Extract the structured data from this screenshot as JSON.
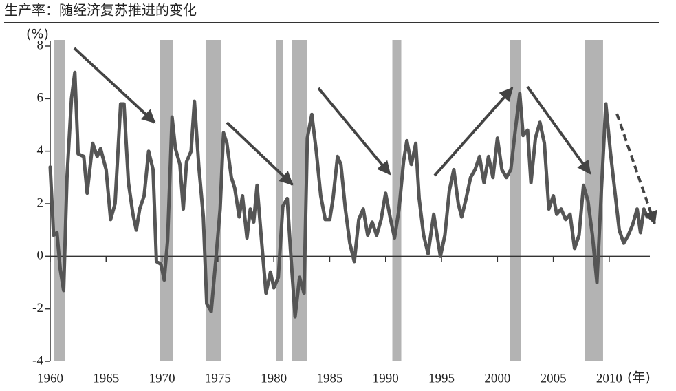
{
  "chart_data": {
    "type": "line",
    "title": "生产率：随经济复苏推进的变化",
    "y_label": "(%)",
    "x_label": "(年)",
    "xlim": [
      1960,
      2014.25
    ],
    "ylim": [
      -4,
      8
    ],
    "xticks": [
      1960,
      1965,
      1970,
      1975,
      1980,
      1985,
      1990,
      1995,
      2000,
      2005,
      2010
    ],
    "yticks": [
      -4,
      -2,
      0,
      2,
      4,
      6,
      8
    ],
    "shade_color": "#b3b3b3",
    "shaded_periods": [
      [
        1960.37,
        1961.3
      ],
      [
        1969.8,
        1971.0
      ],
      [
        1973.9,
        1975.3
      ],
      [
        1980.2,
        1980.8
      ],
      [
        1981.6,
        1983.0
      ],
      [
        1990.6,
        1991.4
      ],
      [
        2001.1,
        2002.1
      ],
      [
        2007.85,
        2009.45
      ]
    ],
    "series": [
      {
        "color": "#555555",
        "x": [
          1960.0,
          1960.3,
          1960.6,
          1960.9,
          1961.2,
          1961.5,
          1961.9,
          1962.2,
          1962.5,
          1963.0,
          1963.3,
          1963.8,
          1964.2,
          1964.5,
          1965.0,
          1965.4,
          1965.8,
          1966.3,
          1966.6,
          1967.0,
          1967.4,
          1967.7,
          1968.0,
          1968.4,
          1968.8,
          1969.2,
          1969.5,
          1969.9,
          1970.2,
          1970.5,
          1970.9,
          1971.2,
          1971.6,
          1971.9,
          1972.2,
          1972.6,
          1972.9,
          1973.3,
          1973.7,
          1974.0,
          1974.4,
          1974.8,
          1975.2,
          1975.5,
          1975.8,
          1976.2,
          1976.5,
          1976.9,
          1977.2,
          1977.6,
          1977.9,
          1978.2,
          1978.5,
          1978.9,
          1979.3,
          1979.7,
          1980.0,
          1980.4,
          1980.8,
          1981.2,
          1981.5,
          1981.9,
          1982.3,
          1982.7,
          1983.0,
          1983.4,
          1983.8,
          1984.2,
          1984.6,
          1985.0,
          1985.3,
          1985.7,
          1986.0,
          1986.4,
          1986.8,
          1987.2,
          1987.6,
          1988.0,
          1988.4,
          1988.8,
          1989.2,
          1989.6,
          1990.0,
          1990.4,
          1990.8,
          1991.2,
          1991.6,
          1991.9,
          1992.3,
          1992.7,
          1993.0,
          1993.4,
          1993.8,
          1994.3,
          1994.6,
          1994.9,
          1995.3,
          1995.7,
          1996.1,
          1996.5,
          1996.8,
          1997.2,
          1997.6,
          1998.0,
          1998.4,
          1998.8,
          1999.2,
          1999.6,
          2000.0,
          2000.4,
          2000.8,
          2001.2,
          2001.6,
          2002.0,
          2002.3,
          2002.7,
          2003.0,
          2003.4,
          2003.8,
          2004.2,
          2004.6,
          2005.0,
          2005.3,
          2005.7,
          2006.1,
          2006.5,
          2006.9,
          2007.3,
          2007.7,
          2008.1,
          2008.5,
          2008.9,
          2009.3,
          2009.7,
          2010.1,
          2010.5,
          2010.9,
          2011.3,
          2011.7,
          2012.1,
          2012.5,
          2012.8,
          2013.1,
          2013.4
        ],
        "values": [
          3.4,
          0.8,
          0.9,
          -0.5,
          -1.3,
          3.0,
          6.0,
          7.0,
          3.9,
          3.8,
          2.4,
          4.3,
          3.8,
          4.1,
          3.3,
          1.4,
          2.0,
          5.8,
          5.8,
          2.8,
          1.6,
          1.0,
          1.8,
          2.3,
          4.0,
          3.3,
          -0.2,
          -0.3,
          -0.9,
          0.6,
          5.3,
          4.1,
          3.5,
          1.8,
          3.6,
          4.0,
          5.9,
          3.4,
          1.5,
          -1.8,
          -2.1,
          -0.2,
          1.8,
          4.7,
          4.3,
          3.0,
          2.6,
          1.5,
          2.3,
          0.7,
          1.8,
          1.3,
          2.7,
          0.6,
          -1.4,
          -0.6,
          -1.2,
          -0.8,
          1.9,
          2.2,
          0.2,
          -2.3,
          -0.8,
          -1.4,
          4.5,
          5.4,
          4.0,
          2.3,
          1.4,
          1.4,
          2.2,
          3.8,
          3.5,
          1.8,
          0.5,
          -0.2,
          1.4,
          1.8,
          0.8,
          1.3,
          0.8,
          1.4,
          2.4,
          1.5,
          0.7,
          1.8,
          3.6,
          4.4,
          3.5,
          4.3,
          2.2,
          0.8,
          0.1,
          1.6,
          0.8,
          0.0,
          0.8,
          2.5,
          3.3,
          2.0,
          1.5,
          2.2,
          3.0,
          3.3,
          3.8,
          2.8,
          3.8,
          3.0,
          4.5,
          3.3,
          3.0,
          3.3,
          4.8,
          6.2,
          4.6,
          4.8,
          2.8,
          4.5,
          5.1,
          4.3,
          1.8,
          2.3,
          1.6,
          1.8,
          1.4,
          1.6,
          0.3,
          0.8,
          2.7,
          2.1,
          0.8,
          -1.0,
          2.5,
          5.8,
          4.0,
          2.5,
          1.0,
          0.5,
          0.8,
          1.2,
          1.8,
          0.9,
          1.8,
          1.5
        ]
      }
    ]
  }
}
